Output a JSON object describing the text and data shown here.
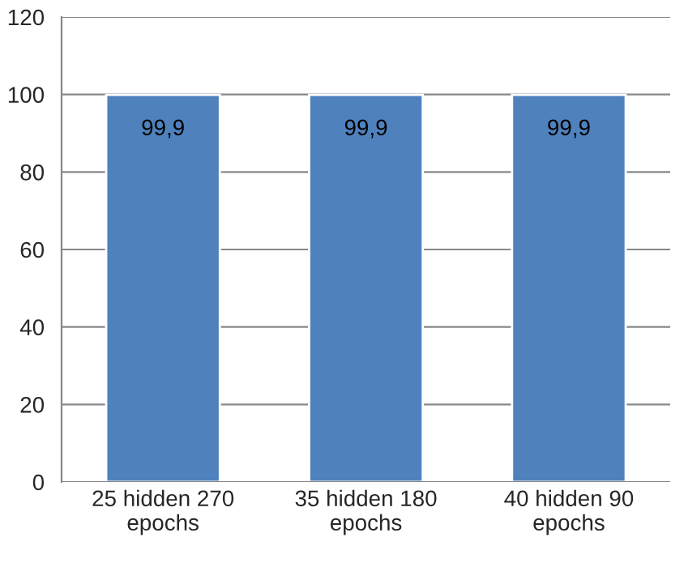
{
  "chart_data": {
    "type": "bar",
    "categories": [
      "25 hidden 270\nepochs",
      "35 hidden 180\nepochs",
      "40 hidden 90\nepochs"
    ],
    "values": [
      99.9,
      99.9,
      99.9
    ],
    "value_labels": [
      "99,9",
      "99,9",
      "99,9"
    ],
    "color": "#4f81bd",
    "ylim": [
      0,
      120
    ],
    "yticks": [
      0,
      20,
      40,
      60,
      80,
      100,
      120
    ],
    "grid": "y"
  }
}
